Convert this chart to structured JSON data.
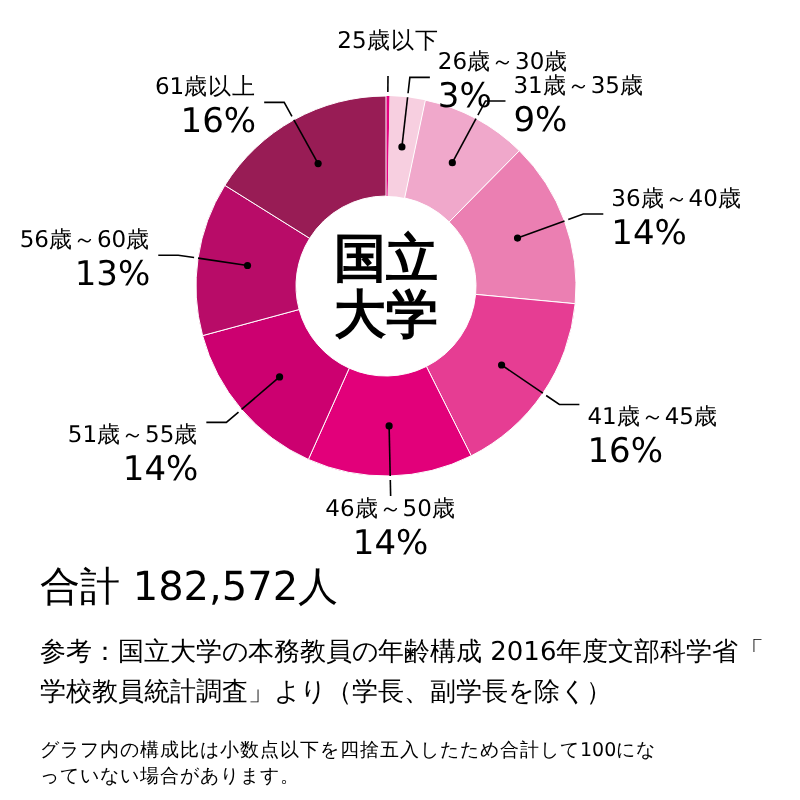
{
  "chart_data": {
    "type": "donut",
    "title": "国立大学",
    "categories": [
      "25歳以下",
      "26歳～30歳",
      "31歳～35歳",
      "36歳～40歳",
      "41歳～45歳",
      "46歳～50歳",
      "51歳～55歳",
      "56歳～60歳",
      "61歳以上"
    ],
    "values": [
      0.3,
      3,
      9,
      14,
      16,
      14,
      14,
      13,
      16
    ],
    "value_labels": [
      null,
      "3%",
      "9%",
      "14%",
      "16%",
      "14%",
      "14%",
      "13%",
      "16%"
    ],
    "colors": [
      "#e4007f",
      "#f7cfe0",
      "#f0a8cb",
      "#eb7fb2",
      "#e63d93",
      "#e2007a",
      "#cc0070",
      "#b80c68",
      "#981c55"
    ],
    "annotations": [
      "合計 182,572人",
      "参考：国立大学の本務教員の年齢構成 2016年度文部科学省「学校教員統計調査」より（学長、副学長を除く）",
      "グラフ内の構成比は小数点以下を四捨五入したため合計して100になっていない場合があります。"
    ]
  }
}
